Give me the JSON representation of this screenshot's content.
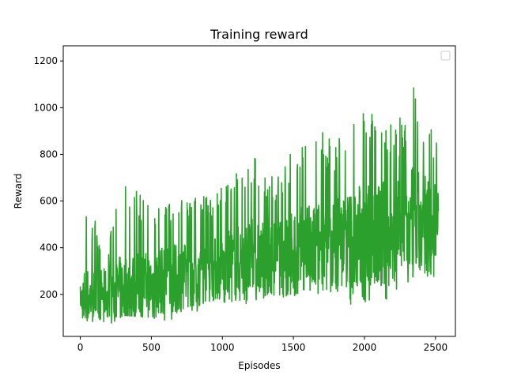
{
  "chart_data": {
    "type": "line",
    "title": "Training reward",
    "xlabel": "Episodes",
    "ylabel": "Reward",
    "xlim": [
      -120,
      2640
    ],
    "ylim": [
      20,
      1265
    ],
    "xticks": [
      0,
      500,
      1000,
      1500,
      2000,
      2500
    ],
    "yticks": [
      200,
      400,
      600,
      800,
      1000,
      1200
    ],
    "xtick_labels": [
      "0",
      "500",
      "1000",
      "1500",
      "2000",
      "2500"
    ],
    "ytick_labels": [
      "200",
      "400",
      "600",
      "800",
      "1000",
      "1200"
    ],
    "grid": false,
    "legend": {
      "location": "upper right",
      "entries": []
    },
    "colors": {
      "line": "#2ca02c",
      "axes": "#000000",
      "background": "#ffffff"
    },
    "series": [
      {
        "episodes": [
          0,
          2520
        ],
        "trend": [
          180,
          520
        ],
        "spread": [
          {
            "x": 0,
            "min": 100,
            "max": 260
          },
          {
            "x": 30,
            "min": 90,
            "max": 580
          },
          {
            "x": 200,
            "min": 60,
            "max": 430
          },
          {
            "x": 300,
            "min": 110,
            "max": 690
          },
          {
            "x": 500,
            "min": 100,
            "max": 600
          },
          {
            "x": 600,
            "min": 70,
            "max": 610
          },
          {
            "x": 700,
            "min": 120,
            "max": 630
          },
          {
            "x": 900,
            "min": 130,
            "max": 620
          },
          {
            "x": 1000,
            "min": 140,
            "max": 670
          },
          {
            "x": 1200,
            "min": 150,
            "max": 820
          },
          {
            "x": 1400,
            "min": 190,
            "max": 700
          },
          {
            "x": 1500,
            "min": 180,
            "max": 850
          },
          {
            "x": 1700,
            "min": 200,
            "max": 900
          },
          {
            "x": 1800,
            "min": 150,
            "max": 880
          },
          {
            "x": 2000,
            "min": 160,
            "max": 1010
          },
          {
            "x": 2200,
            "min": 160,
            "max": 920
          },
          {
            "x": 2300,
            "min": 100,
            "max": 1000
          },
          {
            "x": 2350,
            "min": 300,
            "max": 1210
          },
          {
            "x": 2400,
            "min": 260,
            "max": 1020
          },
          {
            "x": 2450,
            "min": 200,
            "max": 1000
          },
          {
            "x": 2520,
            "min": 230,
            "max": 820
          }
        ]
      }
    ]
  }
}
